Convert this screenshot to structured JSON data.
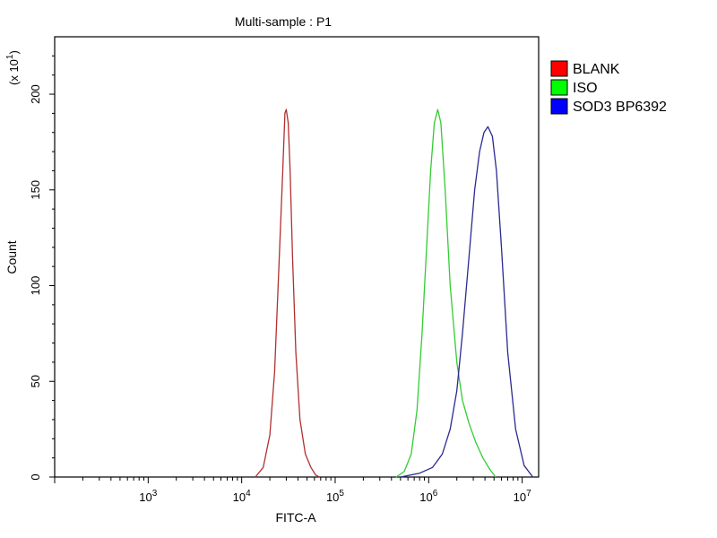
{
  "chart_data": {
    "type": "line",
    "title": "Multi-sample : P1",
    "xlabel": "FITC-A",
    "ylabel": "Count",
    "y_multiplier_label": "(x 10",
    "y_multiplier_exp": "1",
    "y_multiplier_close": ")",
    "x_scale": "log",
    "xlim": [
      100,
      15000000
    ],
    "ylim": [
      0,
      230
    ],
    "y_ticks": [
      0,
      50,
      100,
      150,
      200
    ],
    "x_ticks": [
      {
        "value": 1000,
        "base": "10",
        "exp": "3"
      },
      {
        "value": 10000,
        "base": "10",
        "exp": "4"
      },
      {
        "value": 100000,
        "base": "10",
        "exp": "5"
      },
      {
        "value": 1000000,
        "base": "10",
        "exp": "6"
      },
      {
        "value": 10000000,
        "base": "10",
        "exp": "7"
      }
    ],
    "grid": false,
    "legend_position": "right",
    "series": [
      {
        "name": "BLANK",
        "color": "#b03030",
        "legend_color": "#ff0000",
        "x": [
          14000,
          17000,
          20000,
          22500,
          25000,
          27500,
          29000,
          30000,
          31500,
          33000,
          35000,
          38000,
          42000,
          48000,
          55000,
          62000,
          68000
        ],
        "y": [
          0,
          5,
          22,
          55,
          110,
          160,
          190,
          192,
          185,
          160,
          115,
          65,
          30,
          12,
          5,
          1,
          0
        ]
      },
      {
        "name": "ISO",
        "color": "#33cc33",
        "legend_color": "#00ff00",
        "x": [
          450000,
          550000,
          650000,
          750000,
          850000,
          950000,
          1050000,
          1150000,
          1250000,
          1350000,
          1500000,
          1700000,
          2000000,
          2300000,
          2700000,
          3200000,
          3800000,
          4500000,
          5200000
        ],
        "y": [
          0,
          3,
          12,
          35,
          75,
          120,
          160,
          185,
          192,
          185,
          150,
          100,
          60,
          40,
          28,
          18,
          10,
          4,
          0
        ]
      },
      {
        "name": "SOD3 BP6392",
        "color": "#2a2a90",
        "legend_color": "#0000ff",
        "x": [
          500000,
          800000,
          1100000,
          1400000,
          1700000,
          2000000,
          2300000,
          2700000,
          3100000,
          3500000,
          3900000,
          4300000,
          4800000,
          5300000,
          6000000,
          7000000,
          8500000,
          10500000,
          13000000
        ],
        "y": [
          0,
          2,
          5,
          12,
          25,
          45,
          75,
          115,
          150,
          170,
          180,
          183,
          178,
          160,
          120,
          65,
          25,
          6,
          0
        ]
      }
    ]
  }
}
